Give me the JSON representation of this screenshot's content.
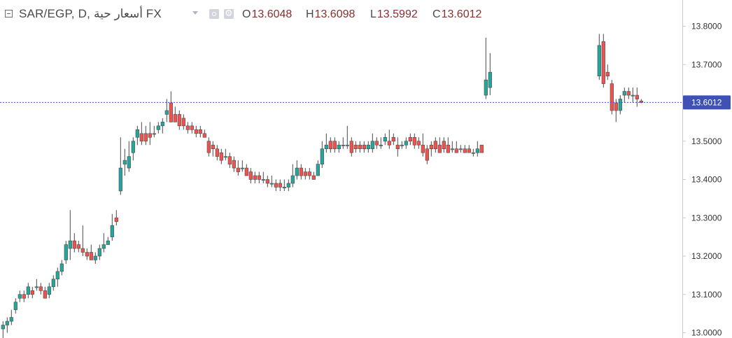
{
  "header": {
    "symbol": "SAR/EGP, D, أسعار حية FX",
    "open_label": "O",
    "open": "13.6048",
    "high_label": "H",
    "high": "13.6098",
    "low_label": "L",
    "low": "13.5992",
    "close_label": "C",
    "close": "13.6012"
  },
  "colors": {
    "up": "#26a69a",
    "down": "#ef5350",
    "price_line": "#3f51b5"
  },
  "chart_data": {
    "type": "candlestick",
    "interval": "D",
    "ylim": [
      12.99,
      13.84
    ],
    "yticks": [
      "13.0000",
      "13.1000",
      "13.2000",
      "13.3000",
      "13.4000",
      "13.5000",
      "13.6000",
      "13.7000",
      "13.8000"
    ],
    "last_price": "13.6012",
    "candles": [
      [
        13.01,
        13.03,
        12.98,
        13.02
      ],
      [
        13.02,
        13.04,
        13.0,
        13.03
      ],
      [
        13.03,
        13.06,
        13.02,
        13.04
      ],
      [
        13.06,
        13.09,
        13.05,
        13.08
      ],
      [
        13.09,
        13.11,
        13.08,
        13.1
      ],
      [
        13.1,
        13.11,
        13.08,
        13.09
      ],
      [
        13.1,
        13.13,
        13.09,
        13.12
      ],
      [
        13.11,
        13.12,
        13.09,
        13.1
      ],
      [
        13.12,
        13.14,
        13.11,
        13.12
      ],
      [
        13.12,
        13.13,
        13.1,
        13.11
      ],
      [
        13.11,
        13.12,
        13.09,
        13.09
      ],
      [
        13.1,
        13.13,
        13.09,
        13.12
      ],
      [
        13.12,
        13.15,
        13.11,
        13.14
      ],
      [
        13.14,
        13.17,
        13.12,
        13.16
      ],
      [
        13.16,
        13.19,
        13.15,
        13.18
      ],
      [
        13.19,
        13.24,
        13.18,
        13.23
      ],
      [
        13.22,
        13.32,
        13.19,
        13.24
      ],
      [
        13.24,
        13.26,
        13.21,
        13.22
      ],
      [
        13.23,
        13.24,
        13.21,
        13.22
      ],
      [
        13.22,
        13.28,
        13.2,
        13.21
      ],
      [
        13.21,
        13.22,
        13.19,
        13.2
      ],
      [
        13.21,
        13.23,
        13.19,
        13.19
      ],
      [
        13.19,
        13.21,
        13.18,
        13.2
      ],
      [
        13.2,
        13.23,
        13.19,
        13.22
      ],
      [
        13.22,
        13.26,
        13.21,
        13.23
      ],
      [
        13.23,
        13.25,
        13.23,
        13.24
      ],
      [
        13.25,
        13.31,
        13.24,
        13.28
      ],
      [
        13.3,
        13.32,
        13.28,
        13.29
      ],
      [
        13.37,
        13.51,
        13.36,
        13.43
      ],
      [
        13.44,
        13.48,
        13.41,
        13.45
      ],
      [
        13.43,
        13.5,
        13.42,
        13.46
      ],
      [
        13.47,
        13.51,
        13.45,
        13.5
      ],
      [
        13.51,
        13.54,
        13.49,
        13.53
      ],
      [
        13.52,
        13.55,
        13.49,
        13.5
      ],
      [
        13.52,
        13.54,
        13.49,
        13.5
      ],
      [
        13.52,
        13.55,
        13.49,
        13.51
      ],
      [
        13.52,
        13.54,
        13.51,
        13.52
      ],
      [
        13.53,
        13.55,
        13.52,
        13.54
      ],
      [
        13.54,
        13.56,
        13.52,
        13.55
      ],
      [
        13.57,
        13.61,
        13.55,
        13.58
      ],
      [
        13.6,
        13.63,
        13.55,
        13.55
      ],
      [
        13.57,
        13.59,
        13.55,
        13.55
      ],
      [
        13.57,
        13.58,
        13.53,
        13.54
      ],
      [
        13.56,
        13.57,
        13.53,
        13.54
      ],
      [
        13.54,
        13.55,
        13.52,
        13.53
      ],
      [
        13.54,
        13.55,
        13.52,
        13.53
      ],
      [
        13.53,
        13.54,
        13.51,
        13.52
      ],
      [
        13.53,
        13.54,
        13.51,
        13.52
      ],
      [
        13.52,
        13.53,
        13.51,
        13.51
      ],
      [
        13.5,
        13.51,
        13.46,
        13.47
      ],
      [
        13.49,
        13.5,
        13.46,
        13.48
      ],
      [
        13.48,
        13.49,
        13.45,
        13.46
      ],
      [
        13.47,
        13.48,
        13.44,
        13.45
      ],
      [
        13.46,
        13.48,
        13.45,
        13.46
      ],
      [
        13.46,
        13.47,
        13.43,
        13.44
      ],
      [
        13.45,
        13.46,
        13.42,
        13.43
      ],
      [
        13.43,
        13.45,
        13.41,
        13.42
      ],
      [
        13.43,
        13.45,
        13.42,
        13.43
      ],
      [
        13.43,
        13.44,
        13.41,
        13.41
      ],
      [
        13.42,
        13.43,
        13.39,
        13.4
      ],
      [
        13.41,
        13.42,
        13.39,
        13.4
      ],
      [
        13.41,
        13.42,
        13.39,
        13.4
      ],
      [
        13.4,
        13.42,
        13.39,
        13.4
      ],
      [
        13.4,
        13.41,
        13.38,
        13.39
      ],
      [
        13.39,
        13.41,
        13.38,
        13.39
      ],
      [
        13.39,
        13.4,
        13.37,
        13.38
      ],
      [
        13.39,
        13.4,
        13.37,
        13.38
      ],
      [
        13.38,
        13.4,
        13.37,
        13.38
      ],
      [
        13.38,
        13.4,
        13.37,
        13.39
      ],
      [
        13.39,
        13.44,
        13.38,
        13.41
      ],
      [
        13.41,
        13.45,
        13.4,
        13.43
      ],
      [
        13.43,
        13.44,
        13.4,
        13.41
      ],
      [
        13.42,
        13.43,
        13.4,
        13.41
      ],
      [
        13.42,
        13.43,
        13.4,
        13.41
      ],
      [
        13.41,
        13.42,
        13.4,
        13.4
      ],
      [
        13.41,
        13.45,
        13.41,
        13.44
      ],
      [
        13.44,
        13.5,
        13.43,
        13.48
      ],
      [
        13.48,
        13.52,
        13.47,
        13.49
      ],
      [
        13.5,
        13.51,
        13.47,
        13.48
      ],
      [
        13.5,
        13.51,
        13.47,
        13.48
      ],
      [
        13.48,
        13.5,
        13.47,
        13.49
      ],
      [
        13.49,
        13.51,
        13.48,
        13.49
      ],
      [
        13.49,
        13.54,
        13.48,
        13.49
      ],
      [
        13.5,
        13.51,
        13.46,
        13.47
      ],
      [
        13.49,
        13.5,
        13.47,
        13.48
      ],
      [
        13.49,
        13.5,
        13.47,
        13.48
      ],
      [
        13.49,
        13.5,
        13.47,
        13.48
      ],
      [
        13.48,
        13.5,
        13.47,
        13.49
      ],
      [
        13.48,
        13.52,
        13.47,
        13.5
      ],
      [
        13.5,
        13.51,
        13.48,
        13.49
      ],
      [
        13.49,
        13.51,
        13.48,
        13.49
      ],
      [
        13.5,
        13.52,
        13.49,
        13.51
      ],
      [
        13.5,
        13.53,
        13.48,
        13.49
      ],
      [
        13.51,
        13.52,
        13.49,
        13.5
      ],
      [
        13.49,
        13.51,
        13.46,
        13.48
      ],
      [
        13.49,
        13.5,
        13.48,
        13.49
      ],
      [
        13.49,
        13.51,
        13.48,
        13.5
      ],
      [
        13.51,
        13.52,
        13.49,
        13.5
      ],
      [
        13.51,
        13.52,
        13.48,
        13.49
      ],
      [
        13.5,
        13.51,
        13.48,
        13.49
      ],
      [
        13.49,
        13.52,
        13.46,
        13.47
      ],
      [
        13.48,
        13.49,
        13.44,
        13.45
      ],
      [
        13.49,
        13.5,
        13.46,
        13.48
      ],
      [
        13.5,
        13.51,
        13.47,
        13.48
      ],
      [
        13.49,
        13.51,
        13.47,
        13.47
      ],
      [
        13.5,
        13.51,
        13.47,
        13.48
      ],
      [
        13.49,
        13.51,
        13.47,
        13.47
      ],
      [
        13.48,
        13.5,
        13.47,
        13.48
      ],
      [
        13.48,
        13.5,
        13.47,
        13.47
      ],
      [
        13.48,
        13.49,
        13.47,
        13.48
      ],
      [
        13.48,
        13.49,
        13.47,
        13.47
      ],
      [
        13.48,
        13.49,
        13.47,
        13.47
      ],
      [
        13.47,
        13.48,
        13.46,
        13.47
      ],
      [
        13.47,
        13.5,
        13.46,
        13.48
      ],
      [
        13.49,
        13.49,
        13.47,
        13.47
      ],
      [
        13.62,
        13.77,
        13.61,
        13.66
      ],
      [
        13.64,
        13.73,
        13.62,
        13.68
      ],
      [
        13.67,
        13.78,
        13.66,
        13.75
      ],
      [
        13.76,
        13.78,
        13.64,
        13.65
      ],
      [
        13.68,
        13.7,
        13.66,
        13.67
      ],
      [
        13.65,
        13.66,
        13.57,
        13.58
      ],
      [
        13.6,
        13.61,
        13.55,
        13.58
      ],
      [
        13.58,
        13.62,
        13.57,
        13.61
      ],
      [
        13.62,
        13.64,
        13.6,
        13.63
      ],
      [
        13.63,
        13.64,
        13.61,
        13.62
      ],
      [
        13.62,
        13.64,
        13.6,
        13.62
      ],
      [
        13.62,
        13.64,
        13.59,
        13.61
      ],
      [
        13.605,
        13.61,
        13.599,
        13.601
      ]
    ]
  }
}
